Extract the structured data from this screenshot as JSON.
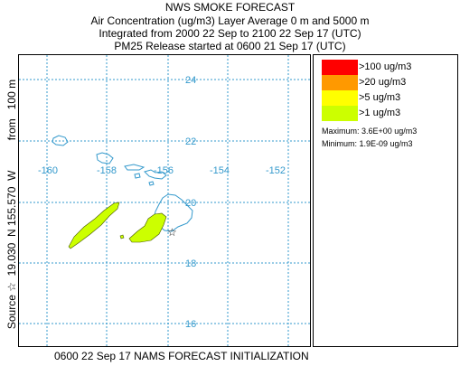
{
  "title": "NWS SMOKE FORECAST",
  "subtitle_lines": [
    "Air Concentration (ug/m3) Layer Average    0 m and  5000 m",
    "Integrated from 2000 22 Sep to 2100 22 Sep 17 (UTC)",
    "PM25 Release started at 0600 21 Sep 17 (UTC)"
  ],
  "side_label": {
    "source": "Source ☆  19.030  N 155.570  W",
    "height": "from   100 m"
  },
  "bottom_label": "0600 22 Sep 17 NAMS FORECAST INITIALIZATION",
  "map": {
    "latitude_labels": [
      "24",
      "22",
      "20",
      "18",
      "16"
    ],
    "longitude_labels": [
      "-160",
      "-158",
      "-156",
      "-154",
      "-152"
    ],
    "grid_color": "#3399cc",
    "coast_color": "#3399cc",
    "plume_color": "#ccff00",
    "source_marker": "star-icon"
  },
  "legend": {
    "items": [
      {
        "label": ">100 ug/m3",
        "color": "#ff0000"
      },
      {
        "label": ">20 ug/m3",
        "color": "#ff9900"
      },
      {
        "label": ">5 ug/m3",
        "color": "#ffff00"
      },
      {
        "label": ">1 ug/m3",
        "color": "#ccff00"
      }
    ],
    "maximum": "Maximum: 3.6E+00 ug/m3",
    "minimum": "Minimum: 1.9E-09 ug/m3"
  }
}
